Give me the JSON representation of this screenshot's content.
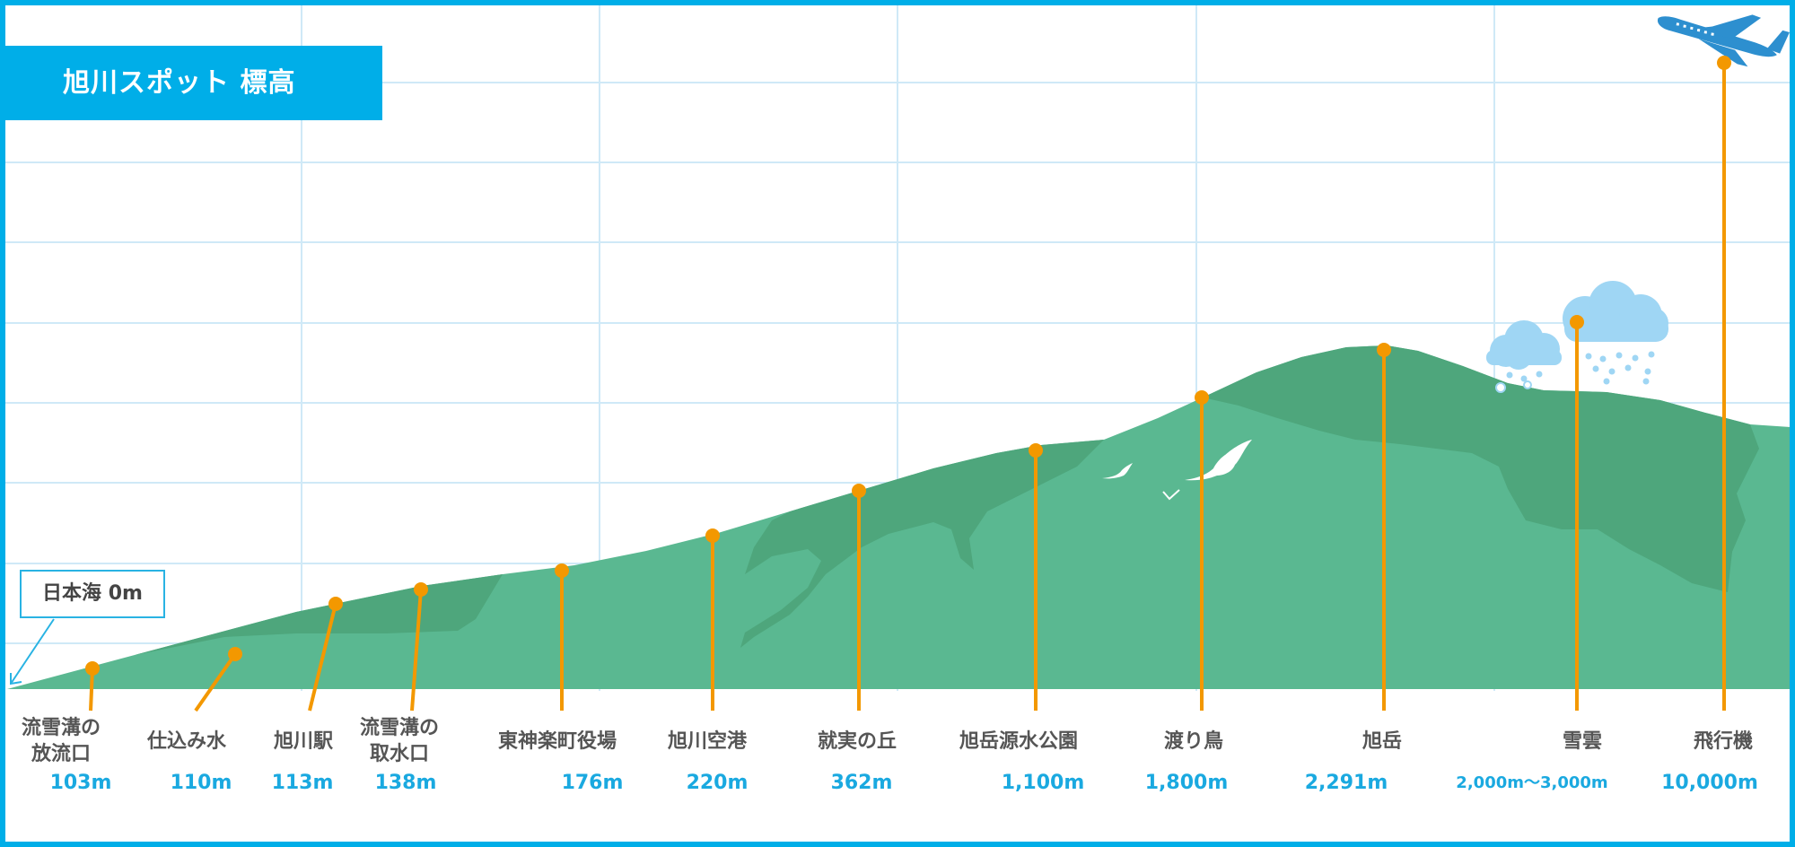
{
  "title": "旭川スポット 標高",
  "sea": {
    "label": "日本海 0m"
  },
  "colors": {
    "frame": "#00aee8",
    "grid": "#cfe9f7",
    "mountain_light": "#5ab891",
    "mountain_dark": "#4ea67c",
    "marker": "#f39800",
    "value_text": "#1aa9e0",
    "cloud": "#9fd6f4"
  },
  "chart_data": {
    "type": "diagram",
    "title": "旭川スポット 標高",
    "baseline": "日本海 0m",
    "spots": [
      {
        "name": "流雪溝の\n放流口",
        "value": "103m",
        "elevation_m": 103
      },
      {
        "name": "仕込み水",
        "value": "110m",
        "elevation_m": 110
      },
      {
        "name": "旭川駅",
        "value": "113m",
        "elevation_m": 113
      },
      {
        "name": "流雪溝の\n取水口",
        "value": "138m",
        "elevation_m": 138
      },
      {
        "name": "東神楽町役場",
        "value": "176m",
        "elevation_m": 176
      },
      {
        "name": "旭川空港",
        "value": "220m",
        "elevation_m": 220
      },
      {
        "name": "就実の丘",
        "value": "362m",
        "elevation_m": 362
      },
      {
        "name": "旭岳源水公園",
        "value": "1,100m",
        "elevation_m": 1100
      },
      {
        "name": "渡り鳥",
        "value": "1,800m",
        "elevation_m": 1800
      },
      {
        "name": "旭岳",
        "value": "2,291m",
        "elevation_m": 2291
      },
      {
        "name": "雪雲",
        "value": "2,000m〜3,000m",
        "elevation_m": [
          2000,
          3000
        ]
      },
      {
        "name": "飛行機",
        "value": "10,000m",
        "elevation_m": 10000
      }
    ]
  },
  "icons": [
    "airplane-icon",
    "cloud-icon",
    "bird-icon",
    "snow-icon"
  ]
}
